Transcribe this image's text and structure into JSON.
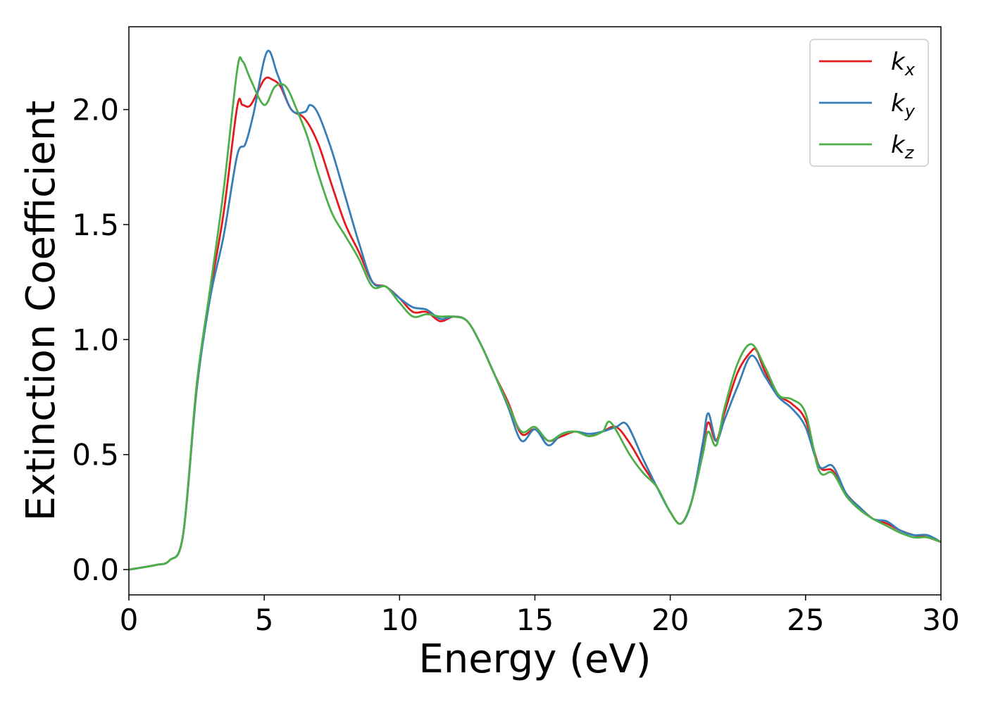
{
  "chart_data": {
    "type": "line",
    "xlabel": "Energy (eV)",
    "ylabel": "Extinction Coefficient",
    "xlim": [
      0,
      30
    ],
    "ylim": [
      -0.11,
      2.36
    ],
    "xticks": [
      "0",
      "5",
      "10",
      "15",
      "20",
      "25",
      "30"
    ],
    "yticks": [
      "0.0",
      "0.5",
      "1.0",
      "1.5",
      "2.0"
    ],
    "grid": false,
    "legend_position": "top-right",
    "series": [
      {
        "name": "k_x",
        "label_main": "k",
        "label_sub": "x",
        "color": "#e41a1c",
        "points": [
          [
            0,
            0
          ],
          [
            1.0,
            0.02
          ],
          [
            1.5,
            0.04
          ],
          [
            2.0,
            0.15
          ],
          [
            2.5,
            0.78
          ],
          [
            3.0,
            1.2
          ],
          [
            3.5,
            1.55
          ],
          [
            4.0,
            2.01
          ],
          [
            4.2,
            2.02
          ],
          [
            4.5,
            2.02
          ],
          [
            5.0,
            2.13
          ],
          [
            5.3,
            2.13
          ],
          [
            5.6,
            2.1
          ],
          [
            6.0,
            2.0
          ],
          [
            6.5,
            1.96
          ],
          [
            7.0,
            1.85
          ],
          [
            7.5,
            1.67
          ],
          [
            8.0,
            1.5
          ],
          [
            8.5,
            1.38
          ],
          [
            9.0,
            1.25
          ],
          [
            9.5,
            1.23
          ],
          [
            10.0,
            1.18
          ],
          [
            10.5,
            1.12
          ],
          [
            11.0,
            1.12
          ],
          [
            11.5,
            1.08
          ],
          [
            12.0,
            1.1
          ],
          [
            12.5,
            1.08
          ],
          [
            13.0,
            0.98
          ],
          [
            13.5,
            0.85
          ],
          [
            14.0,
            0.73
          ],
          [
            14.5,
            0.59
          ],
          [
            15.0,
            0.61
          ],
          [
            15.5,
            0.56
          ],
          [
            16.0,
            0.58
          ],
          [
            16.5,
            0.6
          ],
          [
            17.0,
            0.58
          ],
          [
            17.5,
            0.6
          ],
          [
            18.0,
            0.62
          ],
          [
            18.5,
            0.55
          ],
          [
            19.0,
            0.45
          ],
          [
            19.5,
            0.36
          ],
          [
            20.0,
            0.25
          ],
          [
            20.4,
            0.2
          ],
          [
            20.8,
            0.3
          ],
          [
            21.2,
            0.52
          ],
          [
            21.4,
            0.64
          ],
          [
            21.7,
            0.56
          ],
          [
            22.0,
            0.68
          ],
          [
            22.5,
            0.86
          ],
          [
            23.0,
            0.95
          ],
          [
            23.2,
            0.95
          ],
          [
            23.5,
            0.86
          ],
          [
            24.0,
            0.76
          ],
          [
            24.5,
            0.72
          ],
          [
            25.0,
            0.65
          ],
          [
            25.5,
            0.45
          ],
          [
            26.0,
            0.43
          ],
          [
            26.5,
            0.33
          ],
          [
            27.0,
            0.27
          ],
          [
            27.5,
            0.22
          ],
          [
            28.0,
            0.2
          ],
          [
            28.5,
            0.17
          ],
          [
            29.0,
            0.15
          ],
          [
            29.5,
            0.14
          ],
          [
            30.0,
            0.12
          ]
        ]
      },
      {
        "name": "k_y",
        "label_main": "k",
        "label_sub": "y",
        "color": "#377eb8",
        "points": [
          [
            0,
            0
          ],
          [
            1.0,
            0.02
          ],
          [
            1.5,
            0.04
          ],
          [
            2.0,
            0.15
          ],
          [
            2.5,
            0.78
          ],
          [
            3.0,
            1.18
          ],
          [
            3.5,
            1.45
          ],
          [
            4.0,
            1.8
          ],
          [
            4.3,
            1.85
          ],
          [
            4.6,
            1.98
          ],
          [
            5.1,
            2.25
          ],
          [
            5.5,
            2.15
          ],
          [
            6.0,
            2.0
          ],
          [
            6.5,
            1.99
          ],
          [
            6.7,
            2.02
          ],
          [
            7.0,
            1.98
          ],
          [
            7.5,
            1.82
          ],
          [
            8.0,
            1.62
          ],
          [
            8.5,
            1.42
          ],
          [
            9.0,
            1.25
          ],
          [
            9.5,
            1.23
          ],
          [
            10.0,
            1.18
          ],
          [
            10.5,
            1.14
          ],
          [
            11.0,
            1.13
          ],
          [
            11.5,
            1.09
          ],
          [
            12.0,
            1.1
          ],
          [
            12.5,
            1.08
          ],
          [
            13.0,
            0.98
          ],
          [
            13.5,
            0.85
          ],
          [
            14.0,
            0.71
          ],
          [
            14.5,
            0.56
          ],
          [
            15.0,
            0.61
          ],
          [
            15.5,
            0.54
          ],
          [
            16.0,
            0.59
          ],
          [
            16.5,
            0.6
          ],
          [
            17.0,
            0.59
          ],
          [
            17.5,
            0.6
          ],
          [
            18.0,
            0.62
          ],
          [
            18.4,
            0.63
          ],
          [
            19.0,
            0.48
          ],
          [
            19.5,
            0.36
          ],
          [
            20.0,
            0.25
          ],
          [
            20.4,
            0.2
          ],
          [
            20.8,
            0.3
          ],
          [
            21.2,
            0.55
          ],
          [
            21.4,
            0.68
          ],
          [
            21.7,
            0.56
          ],
          [
            22.0,
            0.65
          ],
          [
            22.5,
            0.8
          ],
          [
            23.0,
            0.93
          ],
          [
            23.5,
            0.84
          ],
          [
            24.0,
            0.75
          ],
          [
            24.5,
            0.7
          ],
          [
            25.0,
            0.62
          ],
          [
            25.5,
            0.45
          ],
          [
            26.0,
            0.45
          ],
          [
            26.5,
            0.33
          ],
          [
            27.0,
            0.27
          ],
          [
            27.5,
            0.22
          ],
          [
            28.0,
            0.21
          ],
          [
            28.5,
            0.17
          ],
          [
            29.0,
            0.15
          ],
          [
            29.5,
            0.15
          ],
          [
            30.0,
            0.12
          ]
        ]
      },
      {
        "name": "k_z",
        "label_main": "k",
        "label_sub": "z",
        "color": "#4daf4a",
        "points": [
          [
            0,
            0
          ],
          [
            1.0,
            0.02
          ],
          [
            1.5,
            0.04
          ],
          [
            2.0,
            0.15
          ],
          [
            2.5,
            0.8
          ],
          [
            3.0,
            1.22
          ],
          [
            3.5,
            1.65
          ],
          [
            4.0,
            2.17
          ],
          [
            4.2,
            2.21
          ],
          [
            4.5,
            2.13
          ],
          [
            5.0,
            2.02
          ],
          [
            5.4,
            2.1
          ],
          [
            5.8,
            2.1
          ],
          [
            6.2,
            2.0
          ],
          [
            6.6,
            1.88
          ],
          [
            7.0,
            1.72
          ],
          [
            7.5,
            1.55
          ],
          [
            8.0,
            1.45
          ],
          [
            8.5,
            1.35
          ],
          [
            9.0,
            1.23
          ],
          [
            9.5,
            1.23
          ],
          [
            10.0,
            1.16
          ],
          [
            10.5,
            1.1
          ],
          [
            11.0,
            1.11
          ],
          [
            11.5,
            1.1
          ],
          [
            12.0,
            1.1
          ],
          [
            12.5,
            1.08
          ],
          [
            13.0,
            0.98
          ],
          [
            13.5,
            0.85
          ],
          [
            14.0,
            0.72
          ],
          [
            14.5,
            0.6
          ],
          [
            15.0,
            0.62
          ],
          [
            15.5,
            0.56
          ],
          [
            16.0,
            0.59
          ],
          [
            16.5,
            0.6
          ],
          [
            17.0,
            0.58
          ],
          [
            17.5,
            0.6
          ],
          [
            17.8,
            0.64
          ],
          [
            18.5,
            0.5
          ],
          [
            19.0,
            0.42
          ],
          [
            19.5,
            0.36
          ],
          [
            20.0,
            0.25
          ],
          [
            20.4,
            0.2
          ],
          [
            20.8,
            0.3
          ],
          [
            21.2,
            0.5
          ],
          [
            21.4,
            0.6
          ],
          [
            21.7,
            0.54
          ],
          [
            22.0,
            0.7
          ],
          [
            22.5,
            0.9
          ],
          [
            23.0,
            0.98
          ],
          [
            23.5,
            0.88
          ],
          [
            24.0,
            0.76
          ],
          [
            24.5,
            0.74
          ],
          [
            25.0,
            0.68
          ],
          [
            25.5,
            0.43
          ],
          [
            26.0,
            0.42
          ],
          [
            26.5,
            0.32
          ],
          [
            27.0,
            0.26
          ],
          [
            27.5,
            0.22
          ],
          [
            28.0,
            0.19
          ],
          [
            28.5,
            0.16
          ],
          [
            29.0,
            0.14
          ],
          [
            29.5,
            0.14
          ],
          [
            30.0,
            0.12
          ]
        ]
      }
    ]
  }
}
